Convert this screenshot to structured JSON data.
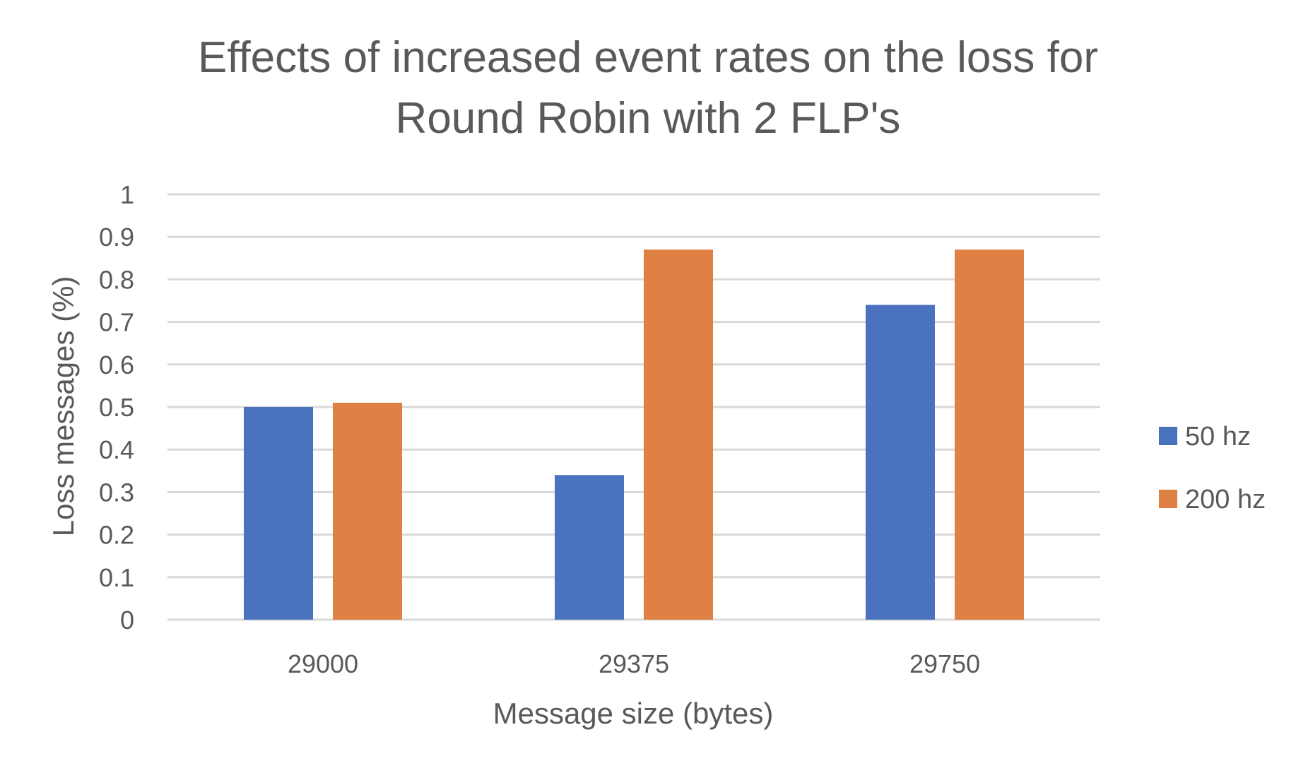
{
  "chart_data": {
    "type": "bar",
    "title_lines": [
      "Effects of increased event rates on the loss for",
      "Round Robin with 2 FLP's"
    ],
    "xlabel": "Message size (bytes)",
    "ylabel": "Loss messages (%)",
    "categories": [
      "29000",
      "29375",
      "29750"
    ],
    "series": [
      {
        "name": "50 hz",
        "color": "#4a72be",
        "values": [
          0.5,
          0.34,
          0.74
        ]
      },
      {
        "name": "200 hz",
        "color": "#df8144",
        "values": [
          0.51,
          0.87,
          0.87
        ]
      }
    ],
    "ylim": [
      0,
      1
    ],
    "yticks": [
      "0",
      "0.1",
      "0.2",
      "0.3",
      "0.4",
      "0.5",
      "0.6",
      "0.7",
      "0.8",
      "0.9",
      "1"
    ],
    "grid": true,
    "legend_position": "right"
  }
}
